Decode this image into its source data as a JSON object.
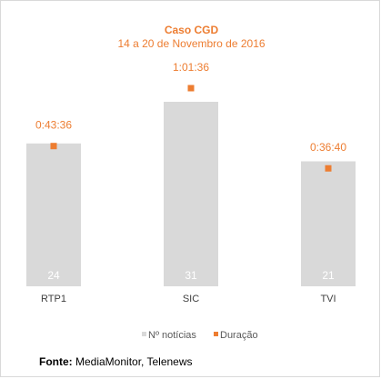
{
  "chart_data": {
    "type": "bar",
    "title": "Caso CGD",
    "subtitle": "14 a 20 de Novembro de 2016",
    "categories": [
      "RTP1",
      "SIC",
      "TVI"
    ],
    "series": [
      {
        "name": "Nº notícias",
        "type": "bar",
        "values": [
          24,
          31,
          21
        ],
        "color": "#d9d9d9"
      },
      {
        "name": "Duração",
        "type": "marker",
        "values": [
          "0:43:36",
          "1:01:36",
          "0:36:40"
        ],
        "values_seconds": [
          2616,
          3696,
          2200
        ],
        "color": "#ed7d31"
      }
    ],
    "legend_position": "bottom",
    "grid": false
  },
  "source": {
    "label": "Fonte:",
    "text": "MediaMonitor, Telenews"
  }
}
